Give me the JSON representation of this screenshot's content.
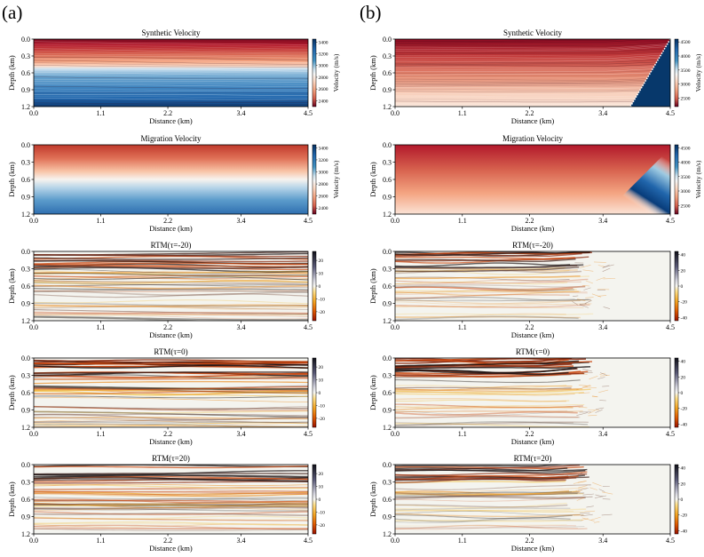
{
  "figure": {
    "panel_labels": [
      "(a)",
      "(b)"
    ],
    "colors": {
      "velocity_low": "#67001f",
      "velocity_mid": "#f7f7f7",
      "velocity_high": "#053061",
      "rtm_negative": "#d03000",
      "rtm_positive": "#101018",
      "axis": "#000000"
    }
  },
  "chart_data": [
    {
      "id": "a-synthetic",
      "type": "heatmap",
      "colormap": "RdBu",
      "title": "Synthetic Velocity",
      "xlabel": "Distance (km)",
      "ylabel": "Depth (km)",
      "xticks": [
        "0.0",
        "1.1",
        "2.2",
        "3.4",
        "4.5"
      ],
      "yticks": [
        "0.0",
        "0.3",
        "0.6",
        "0.9",
        "1.2"
      ],
      "xlim": [
        0,
        4.5
      ],
      "ylim": [
        0,
        1.2
      ],
      "colorbar": {
        "label": "Velocity (m/s)",
        "ticks": [
          "3400",
          "3200",
          "3000",
          "2800",
          "2600",
          "2400"
        ],
        "range": [
          2300,
          3450
        ]
      }
    },
    {
      "id": "b-synthetic",
      "type": "heatmap",
      "colormap": "RdBu",
      "title": "Synthetic Velocity",
      "xlabel": "Distance (km)",
      "ylabel": "Depth (km)",
      "xticks": [
        "0.0",
        "1.1",
        "2.2",
        "3.4",
        "4.5"
      ],
      "yticks": [
        "0.0",
        "0.3",
        "0.6",
        "0.9",
        "1.2"
      ],
      "xlim": [
        0,
        4.5
      ],
      "ylim": [
        0,
        1.2
      ],
      "colorbar": {
        "label": "Velocity (m/s)",
        "ticks": [
          "4500",
          "4000",
          "3500",
          "3000",
          "2500"
        ],
        "range": [
          2200,
          4600
        ]
      }
    },
    {
      "id": "a-migration",
      "type": "heatmap",
      "colormap": "RdBu",
      "title": "Migration Velocity",
      "xlabel": "Distance (km)",
      "ylabel": "Depth (km)",
      "xticks": [
        "0.0",
        "1.1",
        "2.2",
        "3.4",
        "4.5"
      ],
      "yticks": [
        "0.0",
        "0.3",
        "0.6",
        "0.9",
        "1.2"
      ],
      "xlim": [
        0,
        4.5
      ],
      "ylim": [
        0,
        1.2
      ],
      "colorbar": {
        "label": "Velocity (m/s)",
        "ticks": [
          "3400",
          "3200",
          "3000",
          "2800",
          "2600",
          "2400"
        ],
        "range": [
          2300,
          3450
        ]
      }
    },
    {
      "id": "b-migration",
      "type": "heatmap",
      "colormap": "RdBu",
      "title": "Migration Velocity",
      "xlabel": "Distance (km)",
      "ylabel": "Depth (km)",
      "xticks": [
        "0.0",
        "1.1",
        "2.2",
        "3.4",
        "4.5"
      ],
      "yticks": [
        "0.0",
        "0.3",
        "0.6",
        "0.9",
        "1.2"
      ],
      "xlim": [
        0,
        4.5
      ],
      "ylim": [
        0,
        1.2
      ],
      "colorbar": {
        "label": "Velocity (m/s)",
        "ticks": [
          "4500",
          "4000",
          "3500",
          "3000",
          "2500"
        ],
        "range": [
          2200,
          4600
        ]
      }
    },
    {
      "id": "a-rtm-m20",
      "type": "heatmap",
      "colormap": "seismic-image",
      "title": "RTM(τ=-20)",
      "xlabel": "Distance (km)",
      "ylabel": "Depth (km)",
      "xticks": [
        "0.0",
        "1.1",
        "2.2",
        "3.4",
        "4.5"
      ],
      "yticks": [
        "0.0",
        "0.3",
        "0.6",
        "0.9",
        "1.2"
      ],
      "xlim": [
        0,
        4.5
      ],
      "ylim": [
        0,
        1.2
      ],
      "colorbar": {
        "label": "",
        "ticks": [
          "20",
          "10",
          "0",
          "-10",
          "-20"
        ],
        "range": [
          -27,
          27
        ]
      }
    },
    {
      "id": "b-rtm-m20",
      "type": "heatmap",
      "colormap": "seismic-image",
      "title": "RTM(τ=-20)",
      "xlabel": "Distance (km)",
      "ylabel": "Depth (km)",
      "xticks": [
        "0.0",
        "1.1",
        "2.2",
        "3.4",
        "4.5"
      ],
      "yticks": [
        "0.0",
        "0.3",
        "0.6",
        "0.9",
        "1.2"
      ],
      "xlim": [
        0,
        4.5
      ],
      "ylim": [
        0,
        1.2
      ],
      "colorbar": {
        "label": "",
        "ticks": [
          "40",
          "20",
          "0",
          "-20",
          "-40"
        ],
        "range": [
          -44,
          44
        ]
      }
    },
    {
      "id": "a-rtm-0",
      "type": "heatmap",
      "colormap": "seismic-image",
      "title": "RTM(τ=0)",
      "xlabel": "Distance (km)",
      "ylabel": "Depth (km)",
      "xticks": [
        "0.0",
        "1.1",
        "2.2",
        "3.4",
        "4.5"
      ],
      "yticks": [
        "0.0",
        "0.3",
        "0.6",
        "0.9",
        "1.2"
      ],
      "xlim": [
        0,
        4.5
      ],
      "ylim": [
        0,
        1.2
      ],
      "colorbar": {
        "label": "",
        "ticks": [
          "20",
          "10",
          "0",
          "-10",
          "-20"
        ],
        "range": [
          -27,
          27
        ]
      }
    },
    {
      "id": "b-rtm-0",
      "type": "heatmap",
      "colormap": "seismic-image",
      "title": "RTM(τ=0)",
      "xlabel": "Distance (km)",
      "ylabel": "Depth (km)",
      "xticks": [
        "0.0",
        "1.1",
        "2.2",
        "3.4",
        "4.5"
      ],
      "yticks": [
        "0.0",
        "0.3",
        "0.6",
        "0.9",
        "1.2"
      ],
      "xlim": [
        0,
        4.5
      ],
      "ylim": [
        0,
        1.2
      ],
      "colorbar": {
        "label": "",
        "ticks": [
          "40",
          "20",
          "0",
          "-20",
          "-40"
        ],
        "range": [
          -44,
          44
        ]
      }
    },
    {
      "id": "a-rtm-p20",
      "type": "heatmap",
      "colormap": "seismic-image",
      "title": "RTM(τ=20)",
      "xlabel": "Distance (km)",
      "ylabel": "Depth (km)",
      "xticks": [
        "0.0",
        "1.1",
        "2.2",
        "3.4",
        "4.5"
      ],
      "yticks": [
        "0.0",
        "0.3",
        "0.6",
        "0.9",
        "1.2"
      ],
      "xlim": [
        0,
        4.5
      ],
      "ylim": [
        0,
        1.2
      ],
      "colorbar": {
        "label": "",
        "ticks": [
          "20",
          "10",
          "0",
          "-10",
          "-20"
        ],
        "range": [
          -27,
          27
        ]
      }
    },
    {
      "id": "b-rtm-p20",
      "type": "heatmap",
      "colormap": "seismic-image",
      "title": "RTM(τ=20)",
      "xlabel": "Distance (km)",
      "ylabel": "Depth (km)",
      "xticks": [
        "0.0",
        "1.1",
        "2.2",
        "3.4",
        "4.5"
      ],
      "yticks": [
        "0.0",
        "0.3",
        "0.6",
        "0.9",
        "1.2"
      ],
      "xlim": [
        0,
        4.5
      ],
      "ylim": [
        0,
        1.2
      ],
      "colorbar": {
        "label": "",
        "ticks": [
          "40",
          "20",
          "0",
          "-20",
          "-40"
        ],
        "range": [
          -44,
          44
        ]
      }
    }
  ]
}
